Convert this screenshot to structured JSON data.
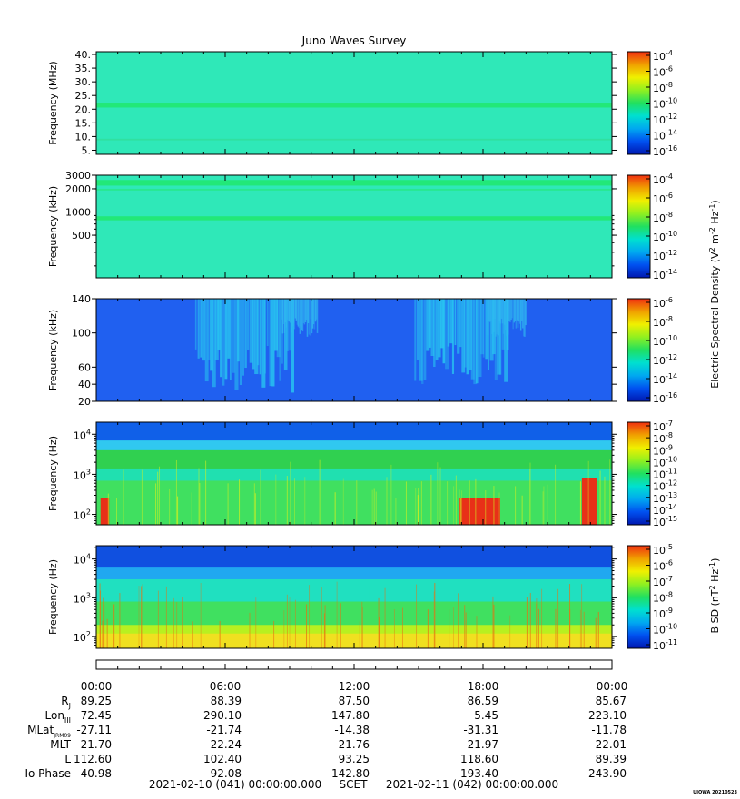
{
  "title": "Juno Waves Survey",
  "chart_data": [
    {
      "type": "heatmap",
      "name": "panel-e-mhz",
      "ylabel": "Frequency (MHz)",
      "yscale": "linear",
      "ylim": [
        3.5,
        41
      ],
      "yticks": [
        {
          "v": 40,
          "label": "40."
        },
        {
          "v": 35,
          "label": "35."
        },
        {
          "v": 30,
          "label": "30."
        },
        {
          "v": 25,
          "label": "25."
        },
        {
          "v": 20,
          "label": "20."
        },
        {
          "v": 15,
          "label": "15."
        },
        {
          "v": 10,
          "label": "10."
        },
        {
          "v": 5,
          "label": "5."
        }
      ],
      "background": "#2fe8b8",
      "bands": [
        {
          "lo": 20.6,
          "hi": 22.4,
          "color": "#22e878"
        },
        {
          "lo": 8.6,
          "hi": 9.2,
          "color": "#30e0a0"
        }
      ]
    },
    {
      "type": "heatmap",
      "name": "panel-e-khz-high",
      "ylabel": "Frequency (kHz)",
      "yscale": "log",
      "ylim": [
        140,
        3000
      ],
      "yticks": [
        {
          "v": 3000,
          "label": "3000"
        },
        {
          "v": 2000,
          "label": "2000"
        },
        {
          "v": 1000,
          "label": "1000"
        },
        {
          "v": 500,
          "label": "500"
        }
      ],
      "background": "#2fe8b8",
      "bands": [
        {
          "lo": 2200,
          "hi": 2600,
          "color": "#22e878"
        },
        {
          "lo": 1900,
          "hi": 2000,
          "color": "#28e890"
        },
        {
          "lo": 780,
          "hi": 880,
          "color": "#22e878"
        }
      ]
    },
    {
      "type": "heatmap",
      "name": "panel-e-khz-low",
      "ylabel": "Frequency (kHz)",
      "yscale": "linear",
      "ylim": [
        20,
        140
      ],
      "yticks": [
        {
          "v": 140,
          "label": "140"
        },
        {
          "v": 100,
          "label": "100"
        },
        {
          "v": 60,
          "label": "60"
        },
        {
          "v": 40,
          "label": "40"
        },
        {
          "v": 20,
          "label": "20"
        }
      ],
      "background": "#2060f0",
      "bursts": [
        {
          "t0": 4.6,
          "t1": 9.2,
          "fmin": 30,
          "color": "#28c8f0"
        },
        {
          "t0": 8.6,
          "t1": 10.3,
          "fmin": 95,
          "color": "#30b8f0"
        },
        {
          "t0": 14.8,
          "t1": 19.2,
          "fmin": 40,
          "color": "#28c8f0"
        },
        {
          "t0": 18.2,
          "t1": 20.0,
          "fmin": 95,
          "color": "#30b8f0"
        }
      ]
    },
    {
      "type": "heatmap",
      "name": "panel-e-hz",
      "ylabel": "Frequency (Hz)",
      "yscale": "log",
      "ylim": [
        55,
        20000
      ],
      "yticks": [
        {
          "v": 10000,
          "base": "10",
          "exp": "4"
        },
        {
          "v": 1000,
          "base": "10",
          "exp": "3"
        },
        {
          "v": 100,
          "base": "10",
          "exp": "2"
        }
      ],
      "layers": [
        {
          "lo": 55,
          "hi": 20000,
          "color": "#30c8f0"
        },
        {
          "lo": 55,
          "hi": 700,
          "color": "#40e060"
        },
        {
          "lo": 700,
          "hi": 1400,
          "color": "#20e0b0"
        },
        {
          "lo": 1400,
          "hi": 4000,
          "color": "#30d050"
        },
        {
          "lo": 7000,
          "hi": 20000,
          "color": "#1060e8"
        }
      ],
      "hot_patches": [
        {
          "t0": 0.2,
          "t1": 0.6,
          "fmin": 55,
          "fmax": 250,
          "color": "#e83018"
        },
        {
          "t0": 16.9,
          "t1": 18.8,
          "fmin": 55,
          "fmax": 250,
          "color": "#e83018"
        },
        {
          "t0": 22.6,
          "t1": 23.3,
          "fmin": 55,
          "fmax": 800,
          "color": "#e83018"
        }
      ]
    },
    {
      "type": "heatmap",
      "name": "panel-b-hz",
      "ylabel": "Frequency (Hz)",
      "yscale": "log",
      "ylim": [
        50,
        22000
      ],
      "yticks": [
        {
          "v": 10000,
          "base": "10",
          "exp": "4"
        },
        {
          "v": 1000,
          "base": "10",
          "exp": "3"
        },
        {
          "v": 100,
          "base": "10",
          "exp": "2"
        }
      ],
      "layers": [
        {
          "lo": 50,
          "hi": 22000,
          "color": "#20a8f0"
        },
        {
          "lo": 50,
          "hi": 3000,
          "color": "#20e0c0"
        },
        {
          "lo": 50,
          "hi": 800,
          "color": "#40e060"
        },
        {
          "lo": 50,
          "hi": 200,
          "color": "#b8f020"
        },
        {
          "lo": 50,
          "hi": 120,
          "color": "#f0e020"
        },
        {
          "lo": 6000,
          "hi": 22000,
          "color": "#1050e0"
        }
      ]
    }
  ],
  "colorbars": [
    {
      "name": "colorbar-1",
      "ticks": [
        {
          "base": "10",
          "exp": "-4"
        },
        {
          "base": "10",
          "exp": "-6"
        },
        {
          "base": "10",
          "exp": "-8"
        },
        {
          "base": "10",
          "exp": "-10"
        },
        {
          "base": "10",
          "exp": "-12"
        },
        {
          "base": "10",
          "exp": "-14"
        },
        {
          "base": "10",
          "exp": "-16"
        }
      ]
    },
    {
      "name": "colorbar-2",
      "ticks": [
        {
          "base": "10",
          "exp": "-4"
        },
        {
          "base": "10",
          "exp": "-6"
        },
        {
          "base": "10",
          "exp": "-8"
        },
        {
          "base": "10",
          "exp": "-10"
        },
        {
          "base": "10",
          "exp": "-12"
        },
        {
          "base": "10",
          "exp": "-14"
        }
      ]
    },
    {
      "name": "colorbar-3",
      "ticks": [
        {
          "base": "10",
          "exp": "-6"
        },
        {
          "base": "10",
          "exp": "-8"
        },
        {
          "base": "10",
          "exp": "-10"
        },
        {
          "base": "10",
          "exp": "-12"
        },
        {
          "base": "10",
          "exp": "-14"
        },
        {
          "base": "10",
          "exp": "-16"
        }
      ]
    },
    {
      "name": "colorbar-4",
      "ticks": [
        {
          "base": "10",
          "exp": "-7"
        },
        {
          "base": "10",
          "exp": "-8"
        },
        {
          "base": "10",
          "exp": "-9"
        },
        {
          "base": "10",
          "exp": "-10"
        },
        {
          "base": "10",
          "exp": "-11"
        },
        {
          "base": "10",
          "exp": "-12"
        },
        {
          "base": "10",
          "exp": "-13"
        },
        {
          "base": "10",
          "exp": "-14"
        },
        {
          "base": "10",
          "exp": "-15"
        }
      ]
    },
    {
      "name": "colorbar-5",
      "ticks": [
        {
          "base": "10",
          "exp": "-5"
        },
        {
          "base": "10",
          "exp": "-6"
        },
        {
          "base": "10",
          "exp": "-7"
        },
        {
          "base": "10",
          "exp": "-8"
        },
        {
          "base": "10",
          "exp": "-9"
        },
        {
          "base": "10",
          "exp": "-10"
        },
        {
          "base": "10",
          "exp": "-11"
        }
      ]
    }
  ],
  "colorbar_label_e": "Electric Spectral Density (V<sup>2</sup> m<sup>-2</sup> Hz<sup>-1</sup>)",
  "colorbar_label_b": "B SD (nT<sup>2</sup> Hz<sup>-1</sup>)",
  "colorbar_label_e_parts": {
    "a": "Electric Spectral Density (V",
    "s1": "2",
    "b": " m",
    "s2": "-2",
    "c": " Hz",
    "s3": "-1",
    "d": ")"
  },
  "colorbar_label_b_parts": {
    "a": "B SD (nT",
    "s1": "2",
    "b": " Hz",
    "s2": "-1",
    "c": ")"
  },
  "colorscale": [
    "#0018b0",
    "#0050f0",
    "#00a8f0",
    "#00e0d0",
    "#20e060",
    "#90f020",
    "#f0f000",
    "#f0a000",
    "#f03010"
  ],
  "time_axis": {
    "xlim": [
      0,
      24
    ],
    "labels": [
      "00:00",
      "06:00",
      "12:00",
      "18:00",
      "00:00"
    ],
    "label_hours": [
      0,
      6,
      12,
      18,
      24
    ]
  },
  "ephemeris": {
    "rows": [
      {
        "label": "R",
        "sub": "J",
        "values": [
          "89.25",
          "88.39",
          "87.50",
          "86.59",
          "85.67"
        ]
      },
      {
        "label": "Lon",
        "sub": "III",
        "values": [
          "72.45",
          "290.10",
          "147.80",
          "5.45",
          "223.10"
        ]
      },
      {
        "label": "MLat",
        "sub": "JRM09",
        "values": [
          "-27.11",
          "-21.74",
          "-14.38",
          "-31.31",
          "-11.78"
        ]
      },
      {
        "label": "MLT",
        "sub": "",
        "values": [
          "21.70",
          "22.24",
          "21.76",
          "21.97",
          "22.01"
        ]
      },
      {
        "label": "L",
        "sub": "",
        "values": [
          "112.60",
          "102.40",
          "93.25",
          "118.60",
          "89.39"
        ]
      },
      {
        "label": "Io Phase",
        "sub": "",
        "values": [
          "40.98",
          "92.08",
          "142.80",
          "193.40",
          "243.90"
        ]
      }
    ]
  },
  "footer": {
    "start": "2021-02-10 (041) 00:00:00.000",
    "scet": "SCET",
    "end": "2021-02-11 (042) 00:00:00.000",
    "credit": "UIOWA 20210523"
  }
}
